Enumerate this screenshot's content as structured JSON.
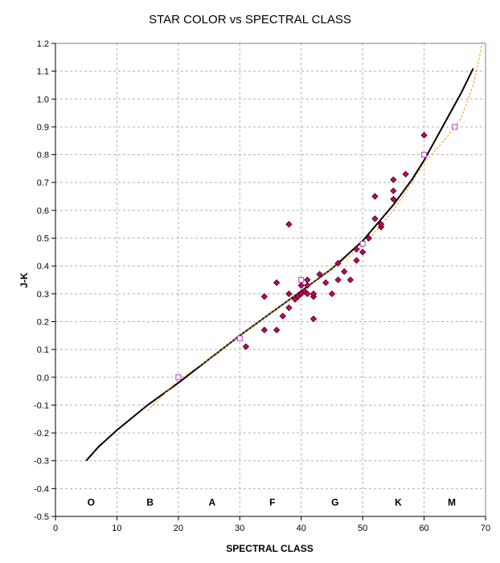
{
  "chart_data": {
    "type": "scatter",
    "title": "STAR COLOR vs SPECTRAL CLASS",
    "xlabel": "SPECTRAL CLASS",
    "ylabel": "J-K",
    "xlim": [
      0,
      70
    ],
    "ylim": [
      -0.5,
      1.2
    ],
    "x_ticks": [
      "0",
      "10",
      "20",
      "30",
      "40",
      "50",
      "60",
      "70"
    ],
    "y_ticks": [
      "-0.5",
      "-0.4",
      "-0.3",
      "-0.2",
      "-0.1",
      "0.0",
      "0.1",
      "0.2",
      "0.3",
      "0.4",
      "0.5",
      "0.6",
      "0.7",
      "0.8",
      "0.9",
      "1.0",
      "1.1",
      "1.2"
    ],
    "grid": true,
    "class_labels": [
      {
        "label": "O",
        "x": 5.8
      },
      {
        "label": "B",
        "x": 15.4
      },
      {
        "label": "A",
        "x": 25.5
      },
      {
        "label": "F",
        "x": 35.3
      },
      {
        "label": "G",
        "x": 45.5
      },
      {
        "label": "K",
        "x": 55.8
      },
      {
        "label": "M",
        "x": 64.5
      }
    ],
    "series": [
      {
        "kind": "points",
        "marker": "diamond",
        "color": "#cc0055",
        "points": [
          [
            31,
            0.11
          ],
          [
            34,
            0.17
          ],
          [
            34,
            0.29
          ],
          [
            36,
            0.17
          ],
          [
            36,
            0.34
          ],
          [
            37,
            0.22
          ],
          [
            38,
            0.25
          ],
          [
            38,
            0.3
          ],
          [
            38,
            0.55
          ],
          [
            39,
            0.28
          ],
          [
            39.5,
            0.29
          ],
          [
            40,
            0.3
          ],
          [
            40,
            0.33
          ],
          [
            40.5,
            0.31
          ],
          [
            41,
            0.3
          ],
          [
            41,
            0.33
          ],
          [
            41,
            0.35
          ],
          [
            42,
            0.21
          ],
          [
            42,
            0.29
          ],
          [
            42,
            0.3
          ],
          [
            43,
            0.37
          ],
          [
            44,
            0.34
          ],
          [
            45,
            0.3
          ],
          [
            46,
            0.35
          ],
          [
            46,
            0.41
          ],
          [
            47,
            0.38
          ],
          [
            48,
            0.35
          ],
          [
            49,
            0.42
          ],
          [
            49,
            0.46
          ],
          [
            50,
            0.45
          ],
          [
            51,
            0.5
          ],
          [
            52,
            0.57
          ],
          [
            52,
            0.65
          ],
          [
            53,
            0.54
          ],
          [
            53,
            0.55
          ],
          [
            55,
            0.64
          ],
          [
            55,
            0.67
          ],
          [
            55,
            0.71
          ],
          [
            57,
            0.73
          ],
          [
            60,
            0.87
          ]
        ]
      },
      {
        "kind": "points",
        "marker": "square",
        "color": "#cc33cc",
        "points": [
          [
            20,
            0.0
          ],
          [
            30,
            0.14
          ],
          [
            40,
            0.35
          ],
          [
            50,
            0.48
          ],
          [
            60,
            0.8
          ],
          [
            65,
            0.9
          ]
        ]
      },
      {
        "kind": "line",
        "color": "#000000",
        "points": [
          [
            5,
            -0.3
          ],
          [
            7,
            -0.25
          ],
          [
            10,
            -0.19
          ],
          [
            15,
            -0.1
          ],
          [
            20,
            -0.02
          ],
          [
            25,
            0.065
          ],
          [
            30,
            0.15
          ],
          [
            35,
            0.23
          ],
          [
            40,
            0.31
          ],
          [
            45,
            0.39
          ],
          [
            50,
            0.49
          ],
          [
            55,
            0.62
          ],
          [
            58,
            0.71
          ],
          [
            60,
            0.78
          ],
          [
            62,
            0.86
          ],
          [
            64,
            0.94
          ],
          [
            66,
            1.02
          ],
          [
            68,
            1.11
          ]
        ]
      },
      {
        "kind": "line",
        "style": "dashed",
        "color": "#ff9900",
        "points": [
          [
            15,
            -0.12
          ],
          [
            20,
            -0.01
          ],
          [
            25,
            0.065
          ],
          [
            30,
            0.15
          ],
          [
            35,
            0.23
          ],
          [
            40,
            0.31
          ],
          [
            45,
            0.39
          ],
          [
            50,
            0.47
          ],
          [
            55,
            0.6
          ],
          [
            58,
            0.7
          ],
          [
            60,
            0.77
          ],
          [
            62,
            0.82
          ],
          [
            64,
            0.87
          ],
          [
            66,
            0.93
          ],
          [
            68,
            1.05
          ],
          [
            69,
            1.15
          ],
          [
            69.5,
            1.21
          ]
        ]
      }
    ]
  }
}
